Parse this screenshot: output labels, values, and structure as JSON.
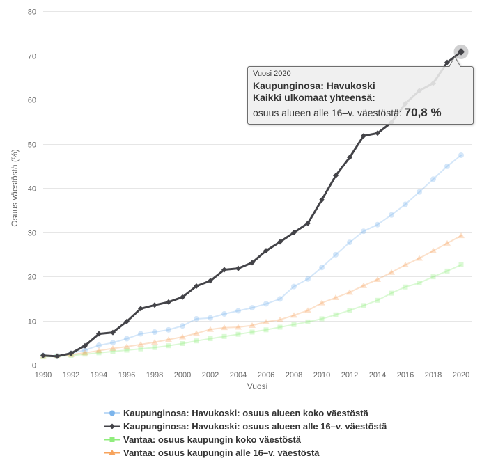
{
  "tooltip": {
    "line1": "Vuosi 2020",
    "line2": "Kaupunginosa: Havukoski",
    "line3": "Kaikki ulkomaat yhteensä:",
    "line4_label": "osuus alueen alle 16–v. väestöstä:",
    "line4_value": "70,8 %"
  },
  "colors": {
    "grid": "#e6e6e6",
    "axis_line": "#ccd6eb",
    "tick_label": "#666666",
    "axis_title": "#666666",
    "legend_text": "#333333",
    "tooltip_bg": "rgba(247,247,247,0.85)",
    "tooltip_border": "#6e6e6e",
    "halo": "#434348"
  },
  "chart_data": {
    "type": "line",
    "title": "",
    "xlabel": "Vuosi",
    "ylabel": "Osuus väestöstä (%)",
    "ylim": [
      0,
      80
    ],
    "ytick_step": 10,
    "grid": true,
    "legend_position": "bottom",
    "x": [
      1990,
      1991,
      1992,
      1993,
      1994,
      1995,
      1996,
      1997,
      1998,
      1999,
      2000,
      2001,
      2002,
      2003,
      2004,
      2005,
      2006,
      2007,
      2008,
      2009,
      2010,
      2011,
      2012,
      2013,
      2014,
      2015,
      2016,
      2017,
      2018,
      2019,
      2020
    ],
    "xticks": [
      1990,
      1992,
      1994,
      1996,
      1998,
      2000,
      2002,
      2004,
      2006,
      2008,
      2010,
      2012,
      2014,
      2016,
      2018,
      2020
    ],
    "series": [
      {
        "name": "Kaupunginosa: Havukoski: osuus alueen koko väestöstä",
        "color": "#7cb5ec",
        "marker": "circle",
        "dimmed": true,
        "line_width": 2,
        "values": [
          2.1,
          2.0,
          2.6,
          3.3,
          4.4,
          5.0,
          5.9,
          7.0,
          7.4,
          7.9,
          8.8,
          10.4,
          10.6,
          11.5,
          12.2,
          12.9,
          13.8,
          14.9,
          17.7,
          19.4,
          22.0,
          24.9,
          27.7,
          30.2,
          31.7,
          33.9,
          36.3,
          39.1,
          42.0,
          44.9,
          47.4
        ]
      },
      {
        "name": "Kaupunginosa: Havukoski: osuus alueen alle 16–v. väestöstä",
        "color": "#434348",
        "marker": "diamond",
        "dimmed": false,
        "line_width": 3,
        "values": [
          2.1,
          1.9,
          2.6,
          4.3,
          7.0,
          7.3,
          9.8,
          12.7,
          13.5,
          14.2,
          15.3,
          17.8,
          19.0,
          21.5,
          21.8,
          23.1,
          25.8,
          27.8,
          29.9,
          32.0,
          37.3,
          42.8,
          46.9,
          51.8,
          52.4,
          54.8,
          59.1,
          62.0,
          63.7,
          68.4,
          70.8
        ]
      },
      {
        "name": "Vantaa: osuus kaupungin koko väestöstä",
        "color": "#90ed7d",
        "marker": "square",
        "dimmed": true,
        "line_width": 2,
        "values": [
          1.8,
          1.9,
          2.1,
          2.4,
          2.7,
          3.0,
          3.3,
          3.6,
          3.9,
          4.3,
          4.8,
          5.4,
          5.9,
          6.4,
          6.9,
          7.4,
          7.9,
          8.5,
          9.1,
          9.7,
          10.4,
          11.3,
          12.3,
          13.4,
          14.6,
          16.2,
          17.6,
          18.5,
          19.9,
          21.2,
          22.6
        ]
      },
      {
        "name": "Vantaa: osuus kaupungin alle 16–v. väestöstä",
        "color": "#f7a35c",
        "marker": "triangle",
        "dimmed": true,
        "line_width": 2,
        "values": [
          1.9,
          2.0,
          2.3,
          2.7,
          3.2,
          3.7,
          4.1,
          4.6,
          5.1,
          5.7,
          6.3,
          7.1,
          8.0,
          8.4,
          8.5,
          8.9,
          9.7,
          10.2,
          11.2,
          12.3,
          14.0,
          15.2,
          16.4,
          17.9,
          19.3,
          20.9,
          22.6,
          24.1,
          25.8,
          27.5,
          29.2
        ]
      }
    ],
    "hover_point": {
      "series_index": 1,
      "year": 2020,
      "value": 70.8
    }
  }
}
